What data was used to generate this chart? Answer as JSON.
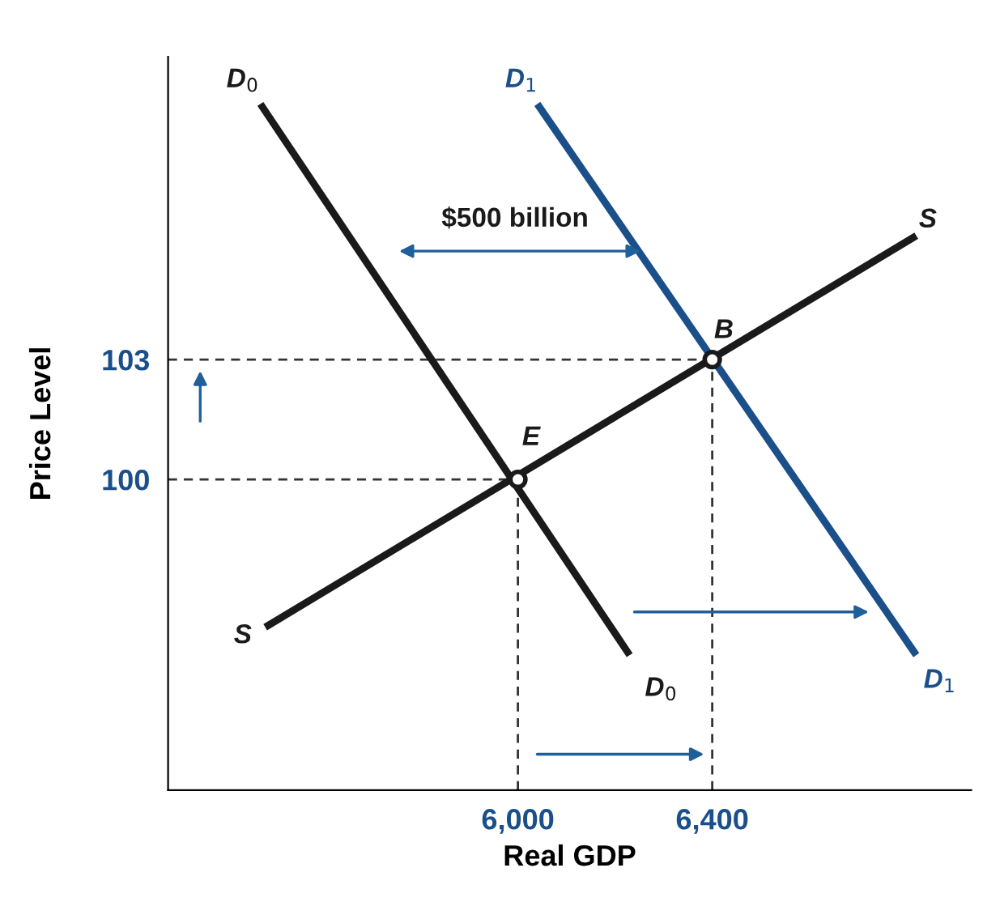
{
  "chart_data": {
    "type": "line",
    "xlabel": "Real GDP",
    "ylabel": "Price Level",
    "xlim": [
      5280,
      6933
    ],
    "ylim": [
      92.22,
      110.58
    ],
    "xticks": [
      {
        "value": 6000,
        "label": "6,000"
      },
      {
        "value": 6400,
        "label": "6,400"
      }
    ],
    "yticks": [
      100,
      103
    ],
    "grid": false,
    "legend": false,
    "series": [
      {
        "color": "#333333",
        "line_style": "dashed",
        "x": [
          5280,
          6000
        ],
        "values": [
          100,
          100
        ]
      },
      {
        "color": "#333333",
        "line_style": "dashed",
        "x": [
          5280,
          6400
        ],
        "values": [
          103,
          103
        ]
      },
      {
        "color": "#333333",
        "line_style": "dashed",
        "x": [
          6000,
          6000
        ],
        "values": [
          92.22,
          100
        ]
      },
      {
        "color": "#333333",
        "line_style": "dashed",
        "x": [
          6400,
          6400
        ],
        "values": [
          92.22,
          103
        ]
      },
      {
        "color": "#1a1a1a",
        "line_style": "solid",
        "x": [
          5470,
          6230
        ],
        "values": [
          109.4,
          95.6
        ]
      },
      {
        "color": "#1b4f8a",
        "line_style": "solid",
        "x": [
          6040,
          6820
        ],
        "values": [
          109.4,
          95.6
        ]
      },
      {
        "color": "#1a1a1a",
        "line_style": "solid",
        "x": [
          5480,
          6820
        ],
        "values": [
          96.3,
          106.1
        ]
      },
      {
        "type": "scatter",
        "color": "#1a1a1a",
        "marker": "circle",
        "x": [
          6000,
          6400
        ],
        "values": [
          100,
          103
        ]
      }
    ],
    "annotations": [
      "D$_{0}$",
      "D$_{0}$",
      "D$_{1}$",
      "D$_{1}$",
      "S",
      "S",
      "E",
      "B",
      "$500 billion"
    ]
  }
}
